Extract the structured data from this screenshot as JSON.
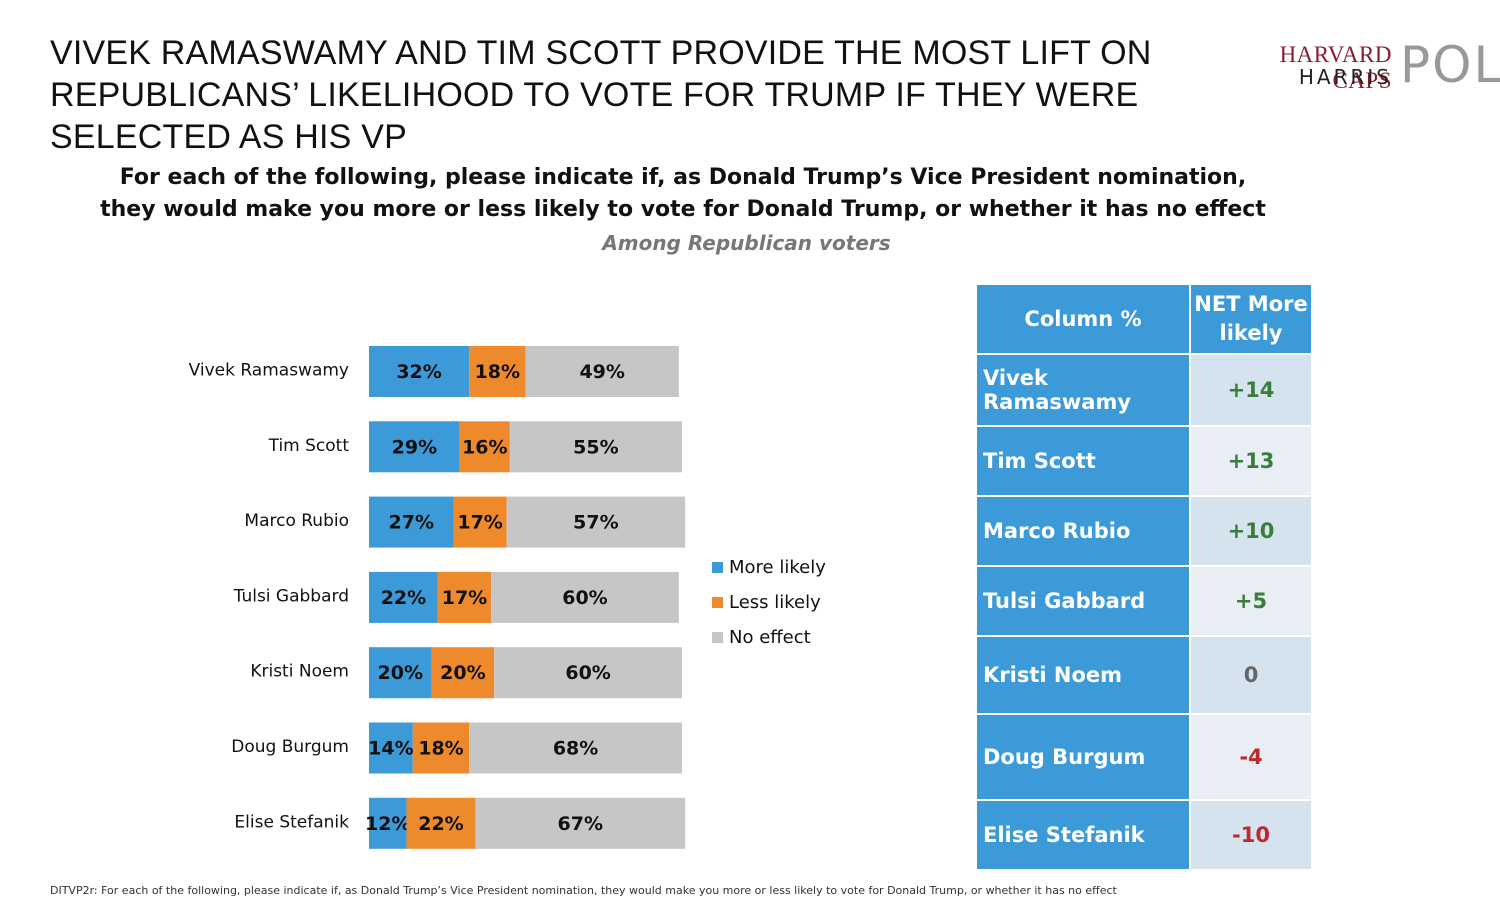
{
  "header": {
    "title": "VIVEK RAMASWAMY AND TIM SCOTT PROVIDE THE MOST LIFT ON REPUBLICANS’ LIKELIHOOD TO VOTE FOR TRUMP IF THEY WERE SELECTED AS HIS VP",
    "question_line1": "For each of the following, please indicate if, as Donald Trump’s Vice President nomination,",
    "question_line2": "they would make you more or less likely to vote for Donald Trump, or whether it has no effect",
    "subtitle": "Among Republican voters"
  },
  "logo": {
    "line1": "HARVARD CAPS",
    "line2": "HARRIS",
    "big": "POL"
  },
  "colors": {
    "more": "#3c9ad8",
    "less": "#ef8a2c",
    "none": "#c6c6c6",
    "positive": "#3a7d3a",
    "neutral": "#666666",
    "negative": "#c0292b"
  },
  "chart_data": {
    "type": "bar",
    "orientation": "horizontal",
    "stacked": true,
    "categories": [
      "Vivek Ramaswamy",
      "Tim Scott",
      "Marco Rubio",
      "Tulsi Gabbard",
      "Kristi Noem",
      "Doug Burgum",
      "Elise Stefanik"
    ],
    "series": [
      {
        "name": "More likely",
        "values": [
          32,
          29,
          27,
          22,
          20,
          14,
          12
        ]
      },
      {
        "name": "Less likely",
        "values": [
          18,
          16,
          17,
          17,
          20,
          18,
          22
        ]
      },
      {
        "name": "No effect",
        "values": [
          49,
          55,
          57,
          60,
          60,
          68,
          67
        ]
      }
    ],
    "value_suffix": "%",
    "legend_position": "right",
    "grid": false,
    "xlim": [
      0,
      100
    ]
  },
  "net_table": {
    "header_col1": "Column %",
    "header_col2": "NET More likely",
    "rows": [
      {
        "name": "Vivek Ramaswamy",
        "net": "+14",
        "sign": "positive"
      },
      {
        "name": "Tim Scott",
        "net": "+13",
        "sign": "positive"
      },
      {
        "name": "Marco Rubio",
        "net": "+10",
        "sign": "positive"
      },
      {
        "name": "Tulsi Gabbard",
        "net": "+5",
        "sign": "positive"
      },
      {
        "name": "Kristi Noem",
        "net": "0",
        "sign": "neutral"
      },
      {
        "name": "Doug Burgum",
        "net": "-4",
        "sign": "negative"
      },
      {
        "name": "Elise Stefanik",
        "net": "-10",
        "sign": "negative"
      }
    ]
  },
  "footnote": "DITVP2r: For each of the following, please indicate if, as Donald Trump’s Vice President nomination, they would make you more or less likely to vote for Donald Trump, or whether it has no effect"
}
